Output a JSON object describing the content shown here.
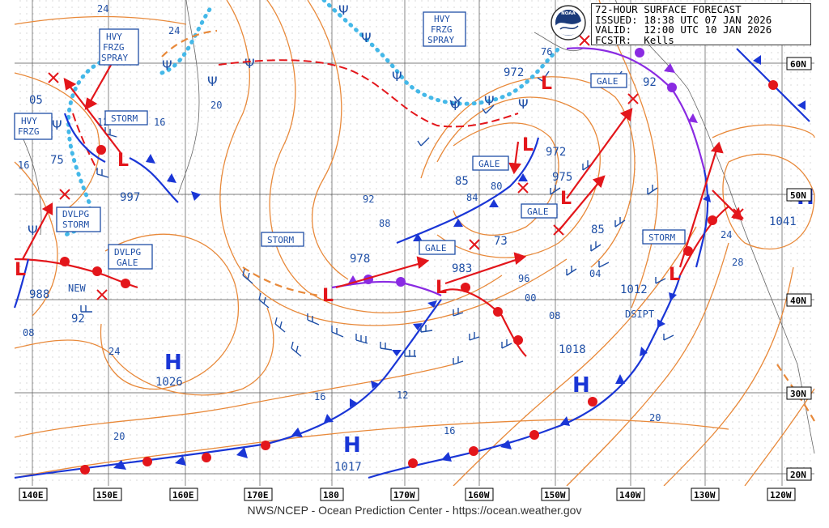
{
  "header": {
    "line1": "72-HOUR SURFACE FORECAST",
    "line2": "ISSUED: 18:38 UTC 07 JAN 2026",
    "line3": "VALID:  12:00 UTC 10 JAN 2026",
    "line4": "FCSTR:  Kells",
    "logo_text": "NOAA"
  },
  "credit": "NWS/NCEP - Ocean Prediction Center - https://ocean.weather.gov",
  "longitude_labels": [
    "140E",
    "150E",
    "160E",
    "170E",
    "180",
    "170W",
    "160W",
    "150W",
    "140W",
    "130W",
    "120W"
  ],
  "latitude_labels": [
    "60N",
    "50N",
    "40N",
    "30N",
    "20N"
  ],
  "warning_labels": [
    {
      "id": "hvy-frzg-spray-west",
      "lines": [
        "HVY",
        "FRZG",
        "SPRAY"
      ]
    },
    {
      "id": "hvy-frzg-spray-east",
      "lines": [
        "HVY",
        "FRZG",
        "SPRAY"
      ]
    },
    {
      "id": "hvy-frzg-sw",
      "lines": [
        "HVY",
        "FRZG"
      ]
    },
    {
      "id": "storm-kamchatka",
      "lines": [
        "STORM"
      ]
    },
    {
      "id": "dvlpg-storm",
      "lines": [
        "DVLPG",
        "STORM"
      ]
    },
    {
      "id": "dvlpg-gale",
      "lines": [
        "DVLPG",
        "GALE"
      ]
    },
    {
      "id": "storm-dateline",
      "lines": [
        "STORM"
      ]
    },
    {
      "id": "gale-center",
      "lines": [
        "GALE"
      ]
    },
    {
      "id": "gale-bering",
      "lines": [
        "GALE"
      ]
    },
    {
      "id": "gale-gulf",
      "lines": [
        "GALE"
      ]
    },
    {
      "id": "gale-alaska",
      "lines": [
        "GALE"
      ]
    },
    {
      "id": "storm-east",
      "lines": [
        "STORM"
      ]
    }
  ],
  "pressure_centers": [
    {
      "type": "H",
      "value": "1026"
    },
    {
      "type": "H",
      "value": "1017"
    },
    {
      "type": "H",
      "value": ""
    },
    {
      "type": "H",
      "value": "1041"
    },
    {
      "type": "L",
      "value": "997"
    },
    {
      "type": "L",
      "value": "988"
    },
    {
      "type": "L",
      "value": "978"
    },
    {
      "type": "L",
      "value": "983"
    },
    {
      "type": "L",
      "value": "975"
    },
    {
      "type": "L",
      "value": "972"
    },
    {
      "type": "L",
      "value": "972"
    },
    {
      "type": "L",
      "value": "1012"
    }
  ],
  "other_labels": {
    "new": "NEW",
    "dsipt": "DSIPT",
    "num_73": "73",
    "num_85a": "85",
    "num_85b": "85",
    "num_92": "92",
    "num_92b": "92",
    "num_75": "75",
    "num_05": "05",
    "num_76": "76",
    "num_1018": "1018"
  },
  "isobar_labels": [
    "24",
    "24",
    "20",
    "16",
    "12",
    "16",
    "08",
    "92",
    "88",
    "84",
    "80",
    "96",
    "00",
    "04",
    "08",
    "12",
    "16",
    "20",
    "16",
    "24",
    "28",
    "20",
    "24"
  ],
  "colors": {
    "isobar": "#e8893a",
    "label": "#1f4fa6",
    "cold_front": "#1a36d6",
    "warm_front": "#e3161b",
    "occluded_front": "#8a2be2",
    "ice": "#44b8e8"
  }
}
